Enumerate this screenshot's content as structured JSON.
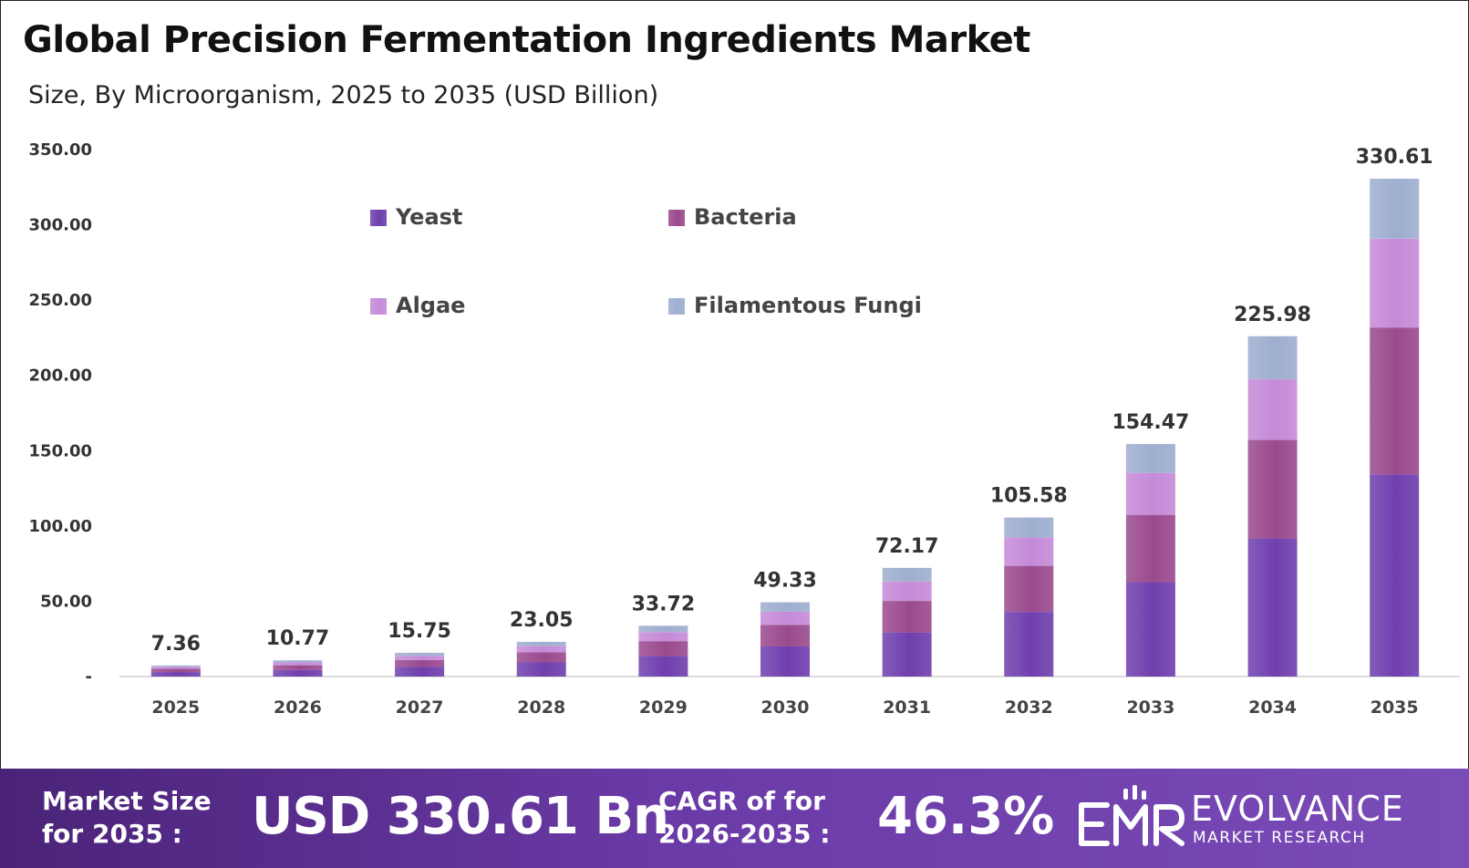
{
  "title": "Global Precision Fermentation Ingredients Market",
  "subtitle": "Size, By Microorganism, 2025 to 2035 (USD Billion)",
  "colors": {
    "yeast": "#6f3fae",
    "bacteria": "#9a4a8e",
    "algae": "#c58ad8",
    "fungi": "#9eaecf",
    "banner": "#5a2d92"
  },
  "chart_data": {
    "type": "bar",
    "stacked": true,
    "categories": [
      "2025",
      "2026",
      "2027",
      "2028",
      "2029",
      "2030",
      "2031",
      "2032",
      "2033",
      "2034",
      "2035"
    ],
    "series": [
      {
        "name": "Yeast",
        "values": [
          3.0,
          4.4,
          6.4,
          9.4,
          13.7,
          20.0,
          29.3,
          42.9,
          62.7,
          91.7,
          134.2
        ]
      },
      {
        "name": "Bacteria",
        "values": [
          2.2,
          3.1,
          4.6,
          6.7,
          9.8,
          14.3,
          20.9,
          30.6,
          44.7,
          65.4,
          97.6
        ]
      },
      {
        "name": "Algae",
        "values": [
          1.3,
          1.9,
          2.8,
          4.1,
          6.0,
          8.8,
          12.9,
          18.9,
          27.8,
          40.4,
          59.0
        ]
      },
      {
        "name": "Filamentous Fungi",
        "values": [
          0.86,
          1.37,
          1.95,
          2.85,
          4.22,
          6.23,
          9.07,
          13.18,
          19.27,
          28.48,
          39.81
        ]
      }
    ],
    "totals": [
      7.36,
      10.77,
      15.75,
      23.05,
      33.72,
      49.33,
      72.17,
      105.58,
      154.47,
      225.98,
      330.61
    ],
    "total_labels": [
      "7.36",
      "10.77",
      "15.75",
      "23.05",
      "33.72",
      "49.33",
      "72.17",
      "105.58",
      "154.47",
      "225.98",
      "330.61"
    ],
    "yticks": [
      0,
      50,
      100,
      150,
      200,
      250,
      300,
      350
    ],
    "ytick_labels": [
      "-",
      "50.00",
      "100.00",
      "150.00",
      "200.00",
      "250.00",
      "300.00",
      "350.00"
    ],
    "ylim": [
      0,
      350
    ],
    "grid": false,
    "legend": "top-center"
  },
  "banner": {
    "label1": "Market Size for 2035 :",
    "value1": "USD 330.61 Bn",
    "label2": "CAGR of for 2026-2035 :",
    "value2": "46.3%",
    "logo_name": "EVOLVANCE",
    "logo_sub": "MARKET RESEARCH"
  }
}
